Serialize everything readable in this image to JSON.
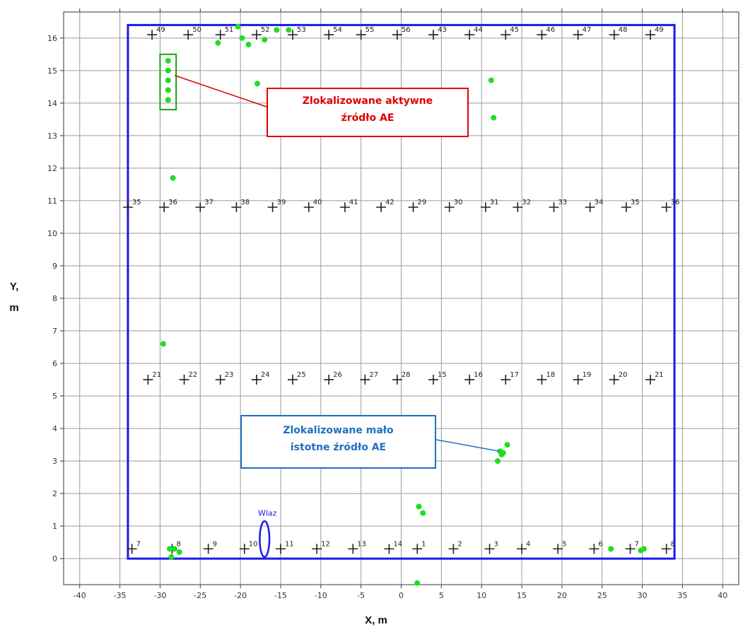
{
  "chart_data": {
    "type": "scatter",
    "xlabel": "X, m",
    "ylabel": "Y, m",
    "xlim": [
      -42,
      42
    ],
    "ylim": [
      -0.8,
      16.8
    ],
    "x_ticks": [
      -40,
      -35,
      -30,
      -25,
      -20,
      -15,
      -10,
      -5,
      0,
      5,
      10,
      15,
      20,
      25,
      30,
      35,
      40
    ],
    "y_ticks": [
      0,
      1,
      2,
      3,
      4,
      5,
      6,
      7,
      8,
      9,
      10,
      11,
      12,
      13,
      14,
      15,
      16
    ],
    "grid": true,
    "colors": {
      "tank_outline": "#1a1aee",
      "events": "#22dd22",
      "sensors": "#222222",
      "callout_active": "#e00000",
      "callout_minor": "#1f6fc0",
      "highlight_box": "#1f9e1f"
    },
    "tank_outline": {
      "x": [
        -34,
        34
      ],
      "y": [
        0,
        16.4
      ]
    },
    "sensors": [
      {
        "label": "7",
        "x": -33.5,
        "y": 0.3
      },
      {
        "label": "8",
        "x": -28.5,
        "y": 0.3
      },
      {
        "label": "9",
        "x": -24.0,
        "y": 0.3
      },
      {
        "label": "10",
        "x": -19.5,
        "y": 0.3
      },
      {
        "label": "11",
        "x": -15.0,
        "y": 0.3
      },
      {
        "label": "12",
        "x": -10.5,
        "y": 0.3
      },
      {
        "label": "13",
        "x": -6.0,
        "y": 0.3
      },
      {
        "label": "14",
        "x": -1.5,
        "y": 0.3
      },
      {
        "label": "1",
        "x": 2.0,
        "y": 0.3
      },
      {
        "label": "2",
        "x": 6.5,
        "y": 0.3
      },
      {
        "label": "3",
        "x": 11.0,
        "y": 0.3
      },
      {
        "label": "4",
        "x": 15.0,
        "y": 0.3
      },
      {
        "label": "5",
        "x": 19.5,
        "y": 0.3
      },
      {
        "label": "6",
        "x": 24.0,
        "y": 0.3
      },
      {
        "label": "7",
        "x": 28.5,
        "y": 0.3
      },
      {
        "label": "8",
        "x": 33.0,
        "y": 0.3
      },
      {
        "label": "21",
        "x": -31.5,
        "y": 5.5
      },
      {
        "label": "22",
        "x": -27.0,
        "y": 5.5
      },
      {
        "label": "23",
        "x": -22.5,
        "y": 5.5
      },
      {
        "label": "24",
        "x": -18.0,
        "y": 5.5
      },
      {
        "label": "25",
        "x": -13.5,
        "y": 5.5
      },
      {
        "label": "26",
        "x": -9.0,
        "y": 5.5
      },
      {
        "label": "27",
        "x": -4.5,
        "y": 5.5
      },
      {
        "label": "28",
        "x": -0.5,
        "y": 5.5
      },
      {
        "label": "15",
        "x": 4.0,
        "y": 5.5
      },
      {
        "label": "16",
        "x": 8.5,
        "y": 5.5
      },
      {
        "label": "17",
        "x": 13.0,
        "y": 5.5
      },
      {
        "label": "18",
        "x": 17.5,
        "y": 5.5
      },
      {
        "label": "19",
        "x": 22.0,
        "y": 5.5
      },
      {
        "label": "20",
        "x": 26.5,
        "y": 5.5
      },
      {
        "label": "21",
        "x": 31.0,
        "y": 5.5
      },
      {
        "label": "35",
        "x": -34.0,
        "y": 10.8
      },
      {
        "label": "36",
        "x": -29.5,
        "y": 10.8
      },
      {
        "label": "37",
        "x": -25.0,
        "y": 10.8
      },
      {
        "label": "38",
        "x": -20.5,
        "y": 10.8
      },
      {
        "label": "39",
        "x": -16.0,
        "y": 10.8
      },
      {
        "label": "40",
        "x": -11.5,
        "y": 10.8
      },
      {
        "label": "41",
        "x": -7.0,
        "y": 10.8
      },
      {
        "label": "42",
        "x": -2.5,
        "y": 10.8
      },
      {
        "label": "29",
        "x": 1.5,
        "y": 10.8
      },
      {
        "label": "30",
        "x": 6.0,
        "y": 10.8
      },
      {
        "label": "31",
        "x": 10.5,
        "y": 10.8
      },
      {
        "label": "32",
        "x": 14.5,
        "y": 10.8
      },
      {
        "label": "33",
        "x": 19.0,
        "y": 10.8
      },
      {
        "label": "34",
        "x": 23.5,
        "y": 10.8
      },
      {
        "label": "35",
        "x": 28.0,
        "y": 10.8
      },
      {
        "label": "36",
        "x": 33.0,
        "y": 10.8
      },
      {
        "label": "49",
        "x": -31.0,
        "y": 16.1
      },
      {
        "label": "50",
        "x": -26.5,
        "y": 16.1
      },
      {
        "label": "51",
        "x": -22.5,
        "y": 16.1
      },
      {
        "label": "52",
        "x": -18.0,
        "y": 16.1
      },
      {
        "label": "53",
        "x": -13.5,
        "y": 16.1
      },
      {
        "label": "54",
        "x": -9.0,
        "y": 16.1
      },
      {
        "label": "55",
        "x": -5.0,
        "y": 16.1
      },
      {
        "label": "56",
        "x": -0.5,
        "y": 16.1
      },
      {
        "label": "43",
        "x": 4.0,
        "y": 16.1
      },
      {
        "label": "44",
        "x": 8.5,
        "y": 16.1
      },
      {
        "label": "45",
        "x": 13.0,
        "y": 16.1
      },
      {
        "label": "46",
        "x": 17.5,
        "y": 16.1
      },
      {
        "label": "47",
        "x": 22.0,
        "y": 16.1
      },
      {
        "label": "48",
        "x": 26.5,
        "y": 16.1
      },
      {
        "label": "49",
        "x": 31.0,
        "y": 16.1
      }
    ],
    "events": [
      {
        "x": -22.8,
        "y": 15.85
      },
      {
        "x": -20.3,
        "y": 16.35
      },
      {
        "x": -19.8,
        "y": 16.0
      },
      {
        "x": -19.0,
        "y": 15.8
      },
      {
        "x": -17.0,
        "y": 15.95
      },
      {
        "x": -15.5,
        "y": 16.25
      },
      {
        "x": -14.0,
        "y": 16.25
      },
      {
        "x": -17.9,
        "y": 14.6
      },
      {
        "x": -29.0,
        "y": 15.3
      },
      {
        "x": -29.0,
        "y": 15.0
      },
      {
        "x": -29.0,
        "y": 14.7
      },
      {
        "x": -29.0,
        "y": 14.4
      },
      {
        "x": -29.0,
        "y": 14.1
      },
      {
        "x": -28.4,
        "y": 11.7
      },
      {
        "x": -29.6,
        "y": 6.6
      },
      {
        "x": 11.2,
        "y": 14.7
      },
      {
        "x": 11.5,
        "y": 13.55
      },
      {
        "x": 12.3,
        "y": 3.3
      },
      {
        "x": 12.7,
        "y": 3.25
      },
      {
        "x": 13.2,
        "y": 3.5
      },
      {
        "x": 12.0,
        "y": 3.0
      },
      {
        "x": 12.5,
        "y": 3.2
      },
      {
        "x": 2.2,
        "y": 1.6
      },
      {
        "x": 2.7,
        "y": 1.4
      },
      {
        "x": 2.0,
        "y": -0.75
      },
      {
        "x": -28.8,
        "y": 0.3
      },
      {
        "x": -28.2,
        "y": 0.3
      },
      {
        "x": -27.6,
        "y": 0.2
      },
      {
        "x": -28.6,
        "y": 0.05
      },
      {
        "x": 26.1,
        "y": 0.3
      },
      {
        "x": 29.8,
        "y": 0.25
      },
      {
        "x": 30.2,
        "y": 0.3
      }
    ],
    "inlet": {
      "label": "Wlaz",
      "x": -17.0,
      "y": 0.6,
      "rx": 0.6,
      "ry": 0.55
    },
    "highlight_box": {
      "x": [
        -30.0,
        -28.0
      ],
      "y": [
        13.8,
        15.5
      ]
    },
    "annotations": [
      {
        "lines": [
          "Zlokalizowane aktywne",
          "źródło AE"
        ]
      },
      {
        "lines": [
          "Zlokalizowane mało",
          "istotne źródło AE"
        ]
      }
    ]
  }
}
